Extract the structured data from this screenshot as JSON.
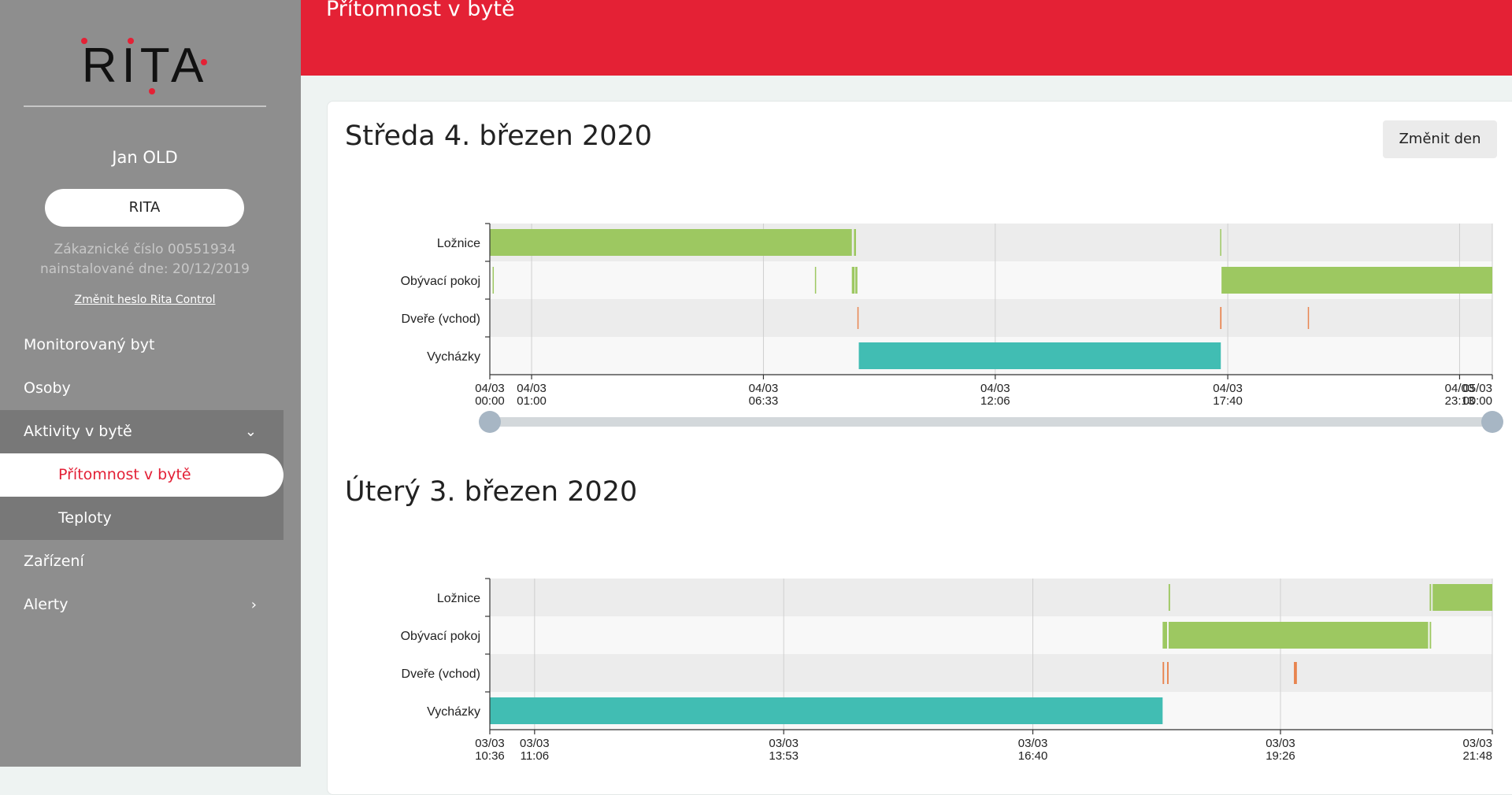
{
  "sidebar": {
    "logo_text": "RITA",
    "user_name": "Jan OLD",
    "device_button": "RITA",
    "customer_number": "Zákaznické číslo 00551934",
    "installed": "nainstalované dne: 20/12/2019",
    "change_password": "Změnit heslo Rita Control",
    "nav": {
      "monitored": "Monitorovaný byt",
      "persons": "Osoby",
      "activities": "Aktivity v bytě",
      "presence": "Přítomnost v bytě",
      "temperatures": "Teploty",
      "devices": "Zařízení",
      "alerts": "Alerty"
    }
  },
  "header": {
    "title": "Přítomnost v bytě"
  },
  "change_day_button": "Změnit den",
  "colors": {
    "room": "#9dc861",
    "door": "#e8844f",
    "outing": "#41bdb3",
    "brand": "#e42135"
  },
  "days": [
    {
      "title": "Středa 4. březen 2020",
      "chart_data": {
        "type": "timeline",
        "rows": [
          "Ložnice",
          "Obývací pokoj",
          "Dveře (vchod)",
          "Vycházky"
        ],
        "ticks": [
          {
            "t": 0,
            "date": "04/03",
            "time": "00:00"
          },
          {
            "t": 60,
            "date": "04/03",
            "time": "01:00"
          },
          {
            "t": 393,
            "date": "04/03",
            "time": "06:33"
          },
          {
            "t": 726,
            "date": "04/03",
            "time": "12:06"
          },
          {
            "t": 1060,
            "date": "04/03",
            "time": "17:40"
          },
          {
            "t": 1393,
            "date": "04/03",
            "time": "23:13"
          },
          {
            "t": 1440,
            "date": "05/03",
            "time": "00:00"
          }
        ],
        "range": [
          0,
          1440
        ],
        "events": [
          {
            "row": 0,
            "start": 0,
            "end": 520,
            "kind": "room"
          },
          {
            "row": 0,
            "start": 523,
            "end": 526,
            "kind": "room"
          },
          {
            "row": 0,
            "start": 1049,
            "end": 1050,
            "kind": "room"
          },
          {
            "row": 1,
            "start": 4,
            "end": 5,
            "kind": "room"
          },
          {
            "row": 1,
            "start": 467,
            "end": 468,
            "kind": "room"
          },
          {
            "row": 1,
            "start": 520,
            "end": 524,
            "kind": "room"
          },
          {
            "row": 1,
            "start": 525,
            "end": 528,
            "kind": "room"
          },
          {
            "row": 1,
            "start": 1051,
            "end": 1440,
            "kind": "room"
          },
          {
            "row": 2,
            "start": 528,
            "end": 529,
            "kind": "door"
          },
          {
            "row": 2,
            "start": 1049,
            "end": 1051,
            "kind": "door"
          },
          {
            "row": 2,
            "start": 1175,
            "end": 1176,
            "kind": "door"
          },
          {
            "row": 3,
            "start": 530,
            "end": 1050,
            "kind": "outing"
          }
        ],
        "has_slider": true
      }
    },
    {
      "title": "Úterý 3. březen 2020",
      "chart_data": {
        "type": "timeline",
        "rows": [
          "Ložnice",
          "Obývací pokoj",
          "Dveře (vchod)",
          "Vycházky"
        ],
        "ticks": [
          {
            "t": 636,
            "date": "03/03",
            "time": "10:36"
          },
          {
            "t": 666,
            "date": "03/03",
            "time": "11:06"
          },
          {
            "t": 833,
            "date": "03/03",
            "time": "13:53"
          },
          {
            "t": 1000,
            "date": "03/03",
            "time": "16:40"
          },
          {
            "t": 1166,
            "date": "03/03",
            "time": "19:26"
          },
          {
            "t": 1308,
            "date": "03/03",
            "time": "21:48"
          }
        ],
        "range": [
          636,
          1308
        ],
        "events": [
          {
            "row": 0,
            "start": 1091,
            "end": 1092,
            "kind": "room"
          },
          {
            "row": 0,
            "start": 1266,
            "end": 1267,
            "kind": "room"
          },
          {
            "row": 0,
            "start": 1268,
            "end": 1308,
            "kind": "room"
          },
          {
            "row": 1,
            "start": 1087,
            "end": 1090,
            "kind": "room"
          },
          {
            "row": 1,
            "start": 1091,
            "end": 1265,
            "kind": "room"
          },
          {
            "row": 1,
            "start": 1266,
            "end": 1267,
            "kind": "room"
          },
          {
            "row": 2,
            "start": 1087,
            "end": 1088,
            "kind": "door"
          },
          {
            "row": 2,
            "start": 1090,
            "end": 1091,
            "kind": "door"
          },
          {
            "row": 2,
            "start": 1175,
            "end": 1177,
            "kind": "door"
          },
          {
            "row": 3,
            "start": 636,
            "end": 1087,
            "kind": "outing"
          }
        ],
        "has_slider": false
      }
    }
  ]
}
